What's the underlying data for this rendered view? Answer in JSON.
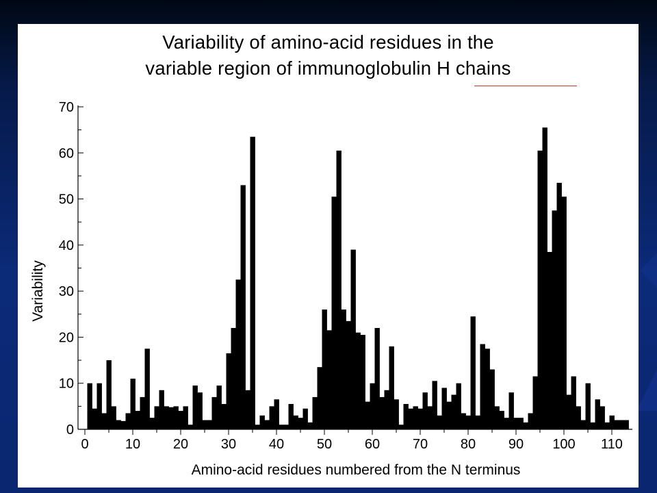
{
  "chart_data": {
    "type": "bar",
    "title_lines": [
      "Variability of amino-acid residues in the",
      "variable region of immunoglobulin H chains"
    ],
    "xlabel": "Amino-acid residues numbered from the N terminus",
    "ylabel": "Variability",
    "xlim": [
      0,
      114
    ],
    "ylim": [
      0,
      70
    ],
    "x_ticks": [
      0,
      10,
      20,
      30,
      40,
      50,
      60,
      70,
      80,
      90,
      100,
      110
    ],
    "y_ticks": [
      0,
      10,
      20,
      30,
      40,
      50,
      60,
      70
    ],
    "grid": false,
    "bar_color": "#000000",
    "x": [
      1,
      2,
      3,
      4,
      5,
      6,
      7,
      8,
      9,
      10,
      11,
      12,
      13,
      14,
      15,
      16,
      17,
      18,
      19,
      20,
      21,
      22,
      23,
      24,
      25,
      26,
      27,
      28,
      29,
      30,
      31,
      32,
      33,
      34,
      35,
      36,
      37,
      38,
      39,
      40,
      41,
      42,
      43,
      44,
      45,
      46,
      47,
      48,
      49,
      50,
      51,
      52,
      53,
      54,
      55,
      56,
      57,
      58,
      59,
      60,
      61,
      62,
      63,
      64,
      65,
      66,
      67,
      68,
      69,
      70,
      71,
      72,
      73,
      74,
      75,
      76,
      77,
      78,
      79,
      80,
      81,
      82,
      83,
      84,
      85,
      86,
      87,
      88,
      89,
      90,
      91,
      92,
      93,
      94,
      95,
      96,
      97,
      98,
      99,
      100,
      101,
      102,
      103,
      104,
      105,
      106,
      107,
      108,
      109,
      110,
      111,
      112,
      113
    ],
    "values": [
      10,
      4.5,
      10,
      3.5,
      15,
      5,
      2,
      1.8,
      3.5,
      11,
      4,
      7,
      17.5,
      2.5,
      5,
      8.5,
      5,
      4.8,
      5,
      4,
      5,
      1,
      9.5,
      8,
      2,
      2,
      7,
      9.5,
      5.5,
      16.5,
      22,
      32.5,
      53,
      8.5,
      63.5,
      1,
      3,
      2,
      5,
      6.5,
      1,
      1,
      5.5,
      3,
      2.5,
      4.5,
      1.5,
      7,
      13.5,
      26,
      21.5,
      50.5,
      60.5,
      26,
      23.5,
      39,
      21,
      20.5,
      6,
      10,
      22,
      7,
      8.5,
      18,
      6.5,
      1,
      5.5,
      4.5,
      5,
      4.5,
      8,
      5,
      10.5,
      3,
      9,
      6,
      7.5,
      10,
      3.5,
      3,
      24.5,
      3,
      18.5,
      17.5,
      13,
      5,
      4,
      2.5,
      8,
      2.5,
      2.5,
      1.5,
      3.5,
      11.5,
      60.5,
      65.5,
      38.5,
      47.5,
      53.5,
      50.5,
      7.5,
      11.5,
      5,
      2,
      10,
      1.5,
      6.5,
      5,
      1.5,
      3,
      2,
      2,
      2
    ]
  }
}
